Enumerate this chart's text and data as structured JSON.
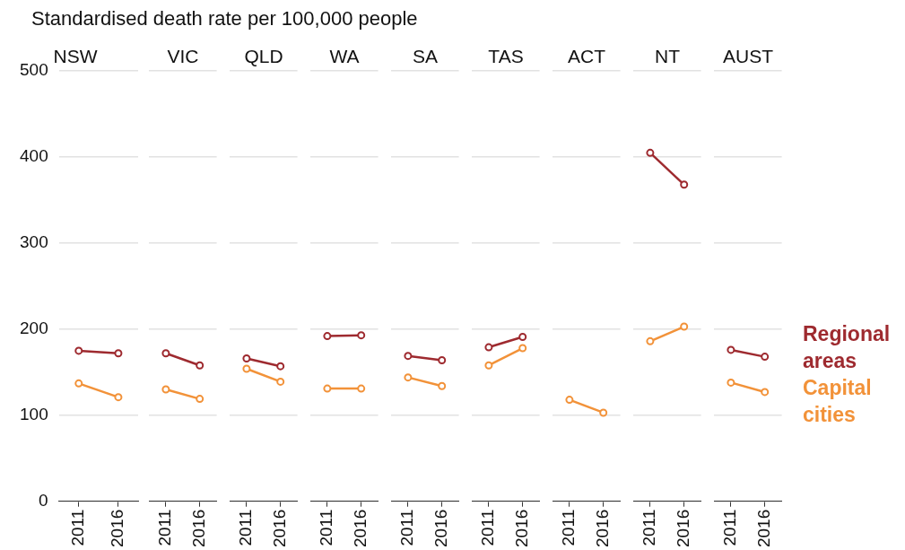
{
  "chart_data": [
    {
      "type": "line",
      "title": "NSW",
      "ylabel": "Standardised death rate per 100,000 people",
      "categories": [
        "2011",
        "2016"
      ],
      "ylim": [
        0,
        500
      ],
      "yticks": [
        0,
        100,
        200,
        300,
        400,
        500
      ],
      "grid": "y",
      "marker": "circle",
      "series": [
        {
          "color": "#9e2a2f",
          "values": [
            175,
            172
          ]
        },
        {
          "color": "#f29239",
          "values": [
            137,
            121
          ]
        }
      ]
    },
    {
      "type": "line",
      "title": "VIC",
      "categories": [
        "2011",
        "2016"
      ],
      "ylim": [
        0,
        500
      ],
      "yticks": [
        0,
        100,
        200,
        300,
        400,
        500
      ],
      "grid": "y",
      "marker": "circle",
      "tick_labels": "x",
      "series": [
        {
          "color": "#9e2a2f",
          "values": [
            172,
            158
          ]
        },
        {
          "color": "#f29239",
          "values": [
            130,
            119
          ]
        }
      ]
    },
    {
      "type": "line",
      "title": "QLD",
      "categories": [
        "2011",
        "2016"
      ],
      "ylim": [
        0,
        500
      ],
      "yticks": [
        0,
        100,
        200,
        300,
        400,
        500
      ],
      "grid": "y",
      "marker": "circle",
      "tick_labels": "x",
      "series": [
        {
          "color": "#9e2a2f",
          "values": [
            166,
            157
          ]
        },
        {
          "color": "#f29239",
          "values": [
            154,
            139
          ]
        }
      ]
    },
    {
      "type": "line",
      "title": "WA",
      "categories": [
        "2011",
        "2016"
      ],
      "ylim": [
        0,
        500
      ],
      "yticks": [
        0,
        100,
        200,
        300,
        400,
        500
      ],
      "grid": "y",
      "marker": "circle",
      "tick_labels": "x",
      "series": [
        {
          "color": "#9e2a2f",
          "values": [
            192,
            193
          ]
        },
        {
          "color": "#f29239",
          "values": [
            131,
            131
          ]
        }
      ]
    },
    {
      "type": "line",
      "title": "SA",
      "categories": [
        "2011",
        "2016"
      ],
      "ylim": [
        0,
        500
      ],
      "yticks": [
        0,
        100,
        200,
        300,
        400,
        500
      ],
      "grid": "y",
      "marker": "circle",
      "tick_labels": "x",
      "series": [
        {
          "color": "#9e2a2f",
          "values": [
            169,
            164
          ]
        },
        {
          "color": "#f29239",
          "values": [
            144,
            134
          ]
        }
      ]
    },
    {
      "type": "line",
      "title": "TAS",
      "categories": [
        "2011",
        "2016"
      ],
      "ylim": [
        0,
        500
      ],
      "yticks": [
        0,
        100,
        200,
        300,
        400,
        500
      ],
      "grid": "y",
      "marker": "circle",
      "tick_labels": "x",
      "series": [
        {
          "color": "#9e2a2f",
          "values": [
            179,
            191
          ]
        },
        {
          "color": "#f29239",
          "values": [
            158,
            178
          ]
        }
      ]
    },
    {
      "type": "line",
      "title": "ACT",
      "categories": [
        "2011",
        "2016"
      ],
      "ylim": [
        0,
        500
      ],
      "yticks": [
        0,
        100,
        200,
        300,
        400,
        500
      ],
      "grid": "y",
      "marker": "circle",
      "tick_labels": "x",
      "series": [
        {
          "color": "#9e2a2f",
          "values": [
            null,
            null
          ]
        },
        {
          "color": "#f29239",
          "values": [
            118,
            103
          ]
        }
      ]
    },
    {
      "type": "line",
      "title": "NT",
      "categories": [
        "2011",
        "2016"
      ],
      "ylim": [
        0,
        500
      ],
      "yticks": [
        0,
        100,
        200,
        300,
        400,
        500
      ],
      "grid": "y",
      "marker": "circle",
      "tick_labels": "x",
      "series": [
        {
          "color": "#9e2a2f",
          "values": [
            405,
            368
          ]
        },
        {
          "color": "#f29239",
          "values": [
            186,
            203
          ]
        }
      ]
    },
    {
      "type": "line",
      "title": "AUST",
      "categories": [
        "2011",
        "2016"
      ],
      "ylim": [
        0,
        500
      ],
      "yticks": [
        0,
        100,
        200,
        300,
        400,
        500
      ],
      "grid": "y",
      "marker": "circle",
      "tick_labels": "x",
      "legend": "right",
      "series": [
        {
          "name": "Regional areas",
          "color": "#9e2a2f",
          "values": [
            176,
            168
          ]
        },
        {
          "name": "Capital cities",
          "color": "#f29239",
          "values": [
            138,
            127
          ]
        }
      ]
    }
  ]
}
